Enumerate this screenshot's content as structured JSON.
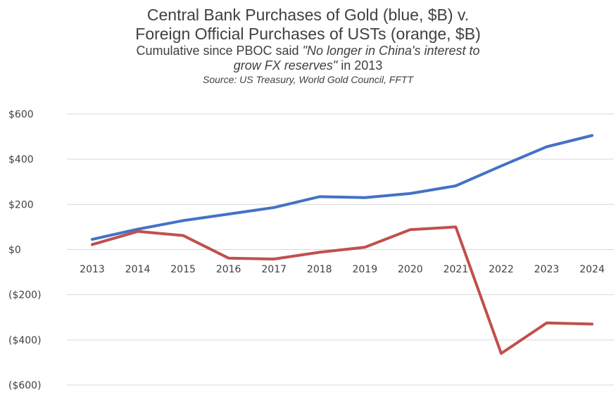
{
  "chart_data": {
    "type": "line",
    "title_lines": [
      "Central Bank Purchases of Gold (blue, $B) v.",
      "Foreign Official Purchases of USTs (orange, $B)"
    ],
    "subtitle_line1_plain": "Cumulative since PBOC said ",
    "subtitle_line1_quote": "\"No longer in China's interest to",
    "subtitle_line2_quote": "grow FX reserves\"",
    "subtitle_line2_plain": " in 2013",
    "source": "Source: US Treasury, World Gold Council, FFTT",
    "x": [
      "2013",
      "2014",
      "2015",
      "2016",
      "2017",
      "2018",
      "2019",
      "2020",
      "2021",
      "2022",
      "2023",
      "2024"
    ],
    "series": [
      {
        "color": "#4472c4",
        "values": [
          45,
          90,
          128,
          157,
          186,
          234,
          230,
          248,
          282,
          370,
          455,
          505
        ]
      },
      {
        "color": "#c0504d",
        "values": [
          22,
          80,
          62,
          -38,
          -42,
          -12,
          10,
          88,
          100,
          -460,
          -325,
          -330
        ]
      }
    ],
    "ylim": [
      -600,
      600
    ],
    "yticks": [
      600,
      400,
      200,
      0,
      -200,
      -400,
      -600
    ],
    "ytick_labels": [
      "$600",
      "$400",
      "$200",
      "$0",
      "($200)",
      "($400)",
      "($600)"
    ],
    "grid": true,
    "gridline_color": "#d9d9d9"
  }
}
